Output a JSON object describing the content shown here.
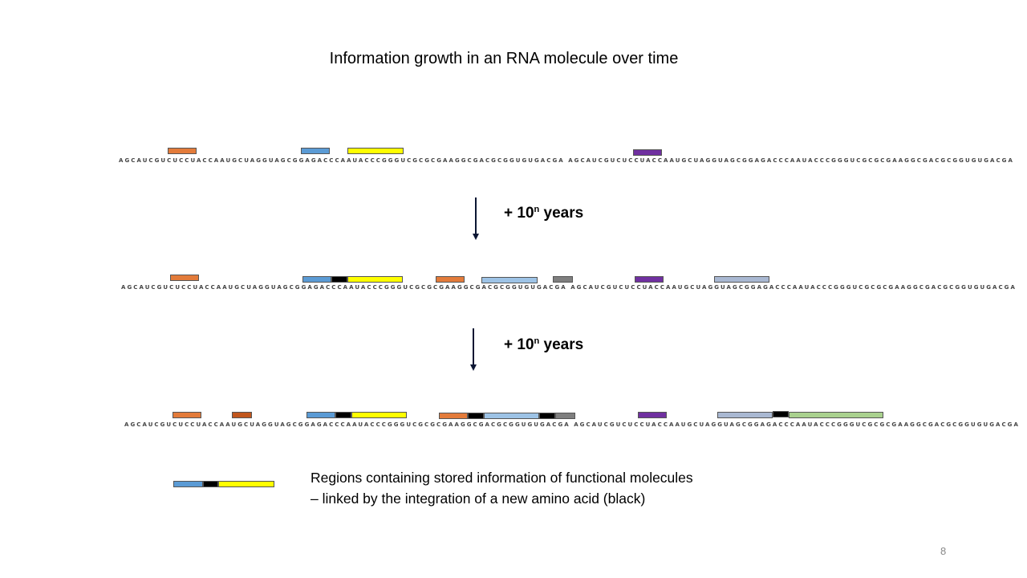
{
  "title": "Information growth in an RNA molecule over time",
  "sequence": "AGCAUCGUCUCCUACCAAUGCUAGGUAGCGGAGACCCAAUACCCGGGUCGCGCGAAGGCGACGCGGUGUGACGA AGCAUCGUCUCCUACCAAUGCUAGGUAGCGGAGACCCAAUACCCGGGUCGCGCGAAGGCGACGCGGUGUGACGA",
  "sequence_row3": "AGCAUCGUCUCCUACCAAUGCUAGGUAGCGGAGACCCAAUACCCGGGUCGCGCGAAGGCGACGCGGUGUGACGA AGCAUCGUCUCCUACCAAUGCUAGGUAGCGGAGACCCAAUACCCGGGUCGCGCGAAGGCGACGCGGUGUGACGA",
  "step_label_prefix": "+ 10",
  "step_label_exp": "n",
  "step_label_suffix": " years",
  "legend": {
    "line1": "Regions containing stored information of functional molecules",
    "line2": "– linked by the integration of a new amino acid (black)"
  },
  "page_number": "8",
  "colors": {
    "orange": "#e37b3a",
    "dark_orange": "#c1561d",
    "blue": "#5b9bd5",
    "light_blue": "#9dc3e6",
    "yellow": "#ffff00",
    "purple": "#7030a0",
    "gray": "#7f7f7f",
    "gray_blue": "#a9b8d2",
    "green": "#a9d18e",
    "black": "#000000"
  }
}
